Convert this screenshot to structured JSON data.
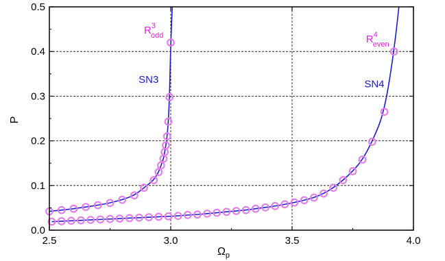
{
  "chart_data": {
    "type": "scatter",
    "xlabel": "Ω",
    "xlabel_sub": "p",
    "ylabel": "P",
    "xlim": [
      2.5,
      4.0
    ],
    "ylim": [
      0.0,
      0.5
    ],
    "grid": true,
    "x_ticks": [
      "2.5",
      "3.0",
      "3.5",
      "4.0"
    ],
    "y_ticks": [
      "0.0",
      "0.1",
      "0.2",
      "0.3",
      "0.4",
      "0.5"
    ],
    "colors": {
      "line": "#1a1acc",
      "markers": "#e080e8",
      "annotation_blue": "#1a1acc",
      "annotation_magenta": "#e020e0"
    },
    "series": [
      {
        "kind": "markers",
        "x": [
          2.5,
          2.55,
          2.6,
          2.65,
          2.7,
          2.75,
          2.8,
          2.85,
          2.89,
          2.93,
          2.95,
          2.96,
          2.97,
          2.975,
          2.98,
          2.985,
          2.99,
          2.995,
          3.0
        ],
        "y": [
          0.042,
          0.045,
          0.048,
          0.052,
          0.056,
          0.061,
          0.068,
          0.078,
          0.095,
          0.112,
          0.13,
          0.145,
          0.16,
          0.175,
          0.19,
          0.21,
          0.243,
          0.298,
          0.42
        ]
      },
      {
        "kind": "markers",
        "x": [
          2.51,
          2.55,
          2.59,
          2.63,
          2.67,
          2.71,
          2.75,
          2.79,
          2.83,
          2.87,
          2.91,
          2.95,
          2.99,
          3.03,
          3.07,
          3.11,
          3.15,
          3.19,
          3.23,
          3.27,
          3.31,
          3.35,
          3.39,
          3.43,
          3.47,
          3.51,
          3.55,
          3.59,
          3.63,
          3.67,
          3.71,
          3.75,
          3.79,
          3.83,
          3.88,
          3.92
        ],
        "y": [
          0.019,
          0.02,
          0.021,
          0.022,
          0.023,
          0.024,
          0.025,
          0.026,
          0.027,
          0.028,
          0.029,
          0.03,
          0.031,
          0.032,
          0.034,
          0.035,
          0.037,
          0.039,
          0.041,
          0.043,
          0.045,
          0.048,
          0.051,
          0.054,
          0.058,
          0.062,
          0.067,
          0.073,
          0.082,
          0.095,
          0.112,
          0.132,
          0.158,
          0.198,
          0.265,
          0.4
        ]
      }
    ],
    "annotations": [
      {
        "text": "R",
        "sup": "3",
        "sub": "odd",
        "x": 2.97,
        "y": 0.44,
        "color": "magenta"
      },
      {
        "text": "R",
        "sup": "4",
        "sub": "even",
        "x": 3.9,
        "y": 0.42,
        "color": "magenta"
      },
      {
        "text": "SN3",
        "x": 2.95,
        "y": 0.33,
        "color": "blue"
      },
      {
        "text": "SN4",
        "x": 3.88,
        "y": 0.32,
        "color": "blue"
      }
    ]
  }
}
